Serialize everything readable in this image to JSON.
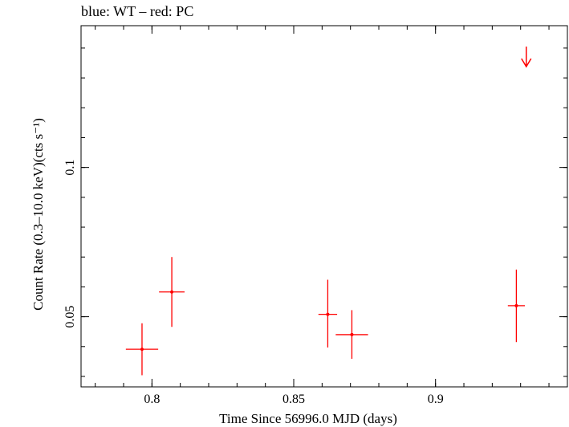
{
  "chart_data": {
    "type": "scatter",
    "title": "blue: WT – red: PC",
    "xlabel": "Time Since 56996.0 MJD (days)",
    "ylabel": "Count Rate (0.3–10.0 keV)(cts s⁻¹)",
    "xlim": [
      0.775,
      0.9465
    ],
    "ylim": [
      0.0265,
      0.1475
    ],
    "x_ticks": [
      {
        "value": 0.8,
        "label": "0.8"
      },
      {
        "value": 0.85,
        "label": "0.85"
      },
      {
        "value": 0.9,
        "label": "0.9"
      }
    ],
    "y_ticks": [
      {
        "value": 0.05,
        "label": "0.05"
      },
      {
        "value": 0.1,
        "label": "0.1"
      }
    ],
    "grid": false,
    "series": [
      {
        "name": "PC",
        "color": "#ff0000",
        "points": [
          {
            "x": 0.7965,
            "y": 0.0391,
            "xerr": 0.0057,
            "yerr_low": 0.0087,
            "yerr_high": 0.0087
          },
          {
            "x": 0.807,
            "y": 0.0583,
            "xerr": 0.0045,
            "yerr_low": 0.0117,
            "yerr_high": 0.0117
          },
          {
            "x": 0.862,
            "y": 0.0508,
            "xerr": 0.0033,
            "yerr_low": 0.0111,
            "yerr_high": 0.0116
          },
          {
            "x": 0.8705,
            "y": 0.044,
            "xerr": 0.0057,
            "yerr_low": 0.0081,
            "yerr_high": 0.0082
          },
          {
            "x": 0.9285,
            "y": 0.0537,
            "xerr": 0.003,
            "yerr_low": 0.0122,
            "yerr_high": 0.0121
          }
        ],
        "upper_limits": [
          {
            "x": 0.932,
            "y": 0.1405
          }
        ]
      }
    ]
  }
}
